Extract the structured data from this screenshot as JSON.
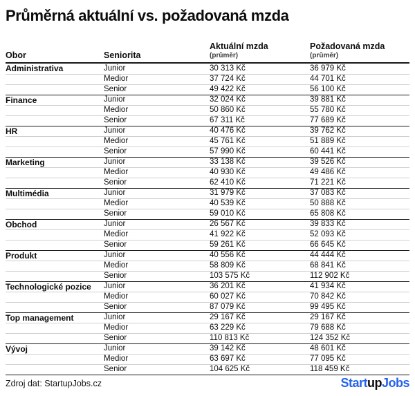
{
  "title": "Průměrná aktuální vs. požadovaná mzda",
  "table": {
    "headers": {
      "obor": "Obor",
      "seniorita": "Seniorita",
      "current": "Aktuální mzda",
      "current_sub": "(průměr)",
      "requested": "Požadovaná mzda",
      "requested_sub": "(průměr)"
    },
    "groups": [
      {
        "obor": "Administrativa",
        "rows": [
          {
            "seniority": "Junior",
            "current": "30 313 Kč",
            "requested": "36 979 Kč"
          },
          {
            "seniority": "Medior",
            "current": "37 724 Kč",
            "requested": "44 701 Kč"
          },
          {
            "seniority": "Senior",
            "current": "49 422 Kč",
            "requested": "56 100 Kč"
          }
        ]
      },
      {
        "obor": "Finance",
        "rows": [
          {
            "seniority": "Junior",
            "current": "32 024 Kč",
            "requested": "39 881 Kč"
          },
          {
            "seniority": "Medior",
            "current": "50 860 Kč",
            "requested": "55 780 Kč"
          },
          {
            "seniority": "Senior",
            "current": "67 311 Kč",
            "requested": "77 689 Kč"
          }
        ]
      },
      {
        "obor": "HR",
        "rows": [
          {
            "seniority": "Junior",
            "current": "40 476 Kč",
            "requested": "39 762 Kč"
          },
          {
            "seniority": "Medior",
            "current": "45 761 Kč",
            "requested": "51 889 Kč"
          },
          {
            "seniority": "Senior",
            "current": "57 990 Kč",
            "requested": "60 441 Kč"
          }
        ]
      },
      {
        "obor": "Marketing",
        "rows": [
          {
            "seniority": "Junior",
            "current": "33 138 Kč",
            "requested": "39 526 Kč"
          },
          {
            "seniority": "Medior",
            "current": "40 930 Kč",
            "requested": "49 486 Kč"
          },
          {
            "seniority": "Senior",
            "current": "62 410 Kč",
            "requested": "71 221 Kč"
          }
        ]
      },
      {
        "obor": "Multimédia",
        "rows": [
          {
            "seniority": "Junior",
            "current": "31 979 Kč",
            "requested": "37 083 Kč"
          },
          {
            "seniority": "Medior",
            "current": "40 539 Kč",
            "requested": "50 888 Kč"
          },
          {
            "seniority": "Senior",
            "current": "59 010 Kč",
            "requested": "65 808 Kč"
          }
        ]
      },
      {
        "obor": "Obchod",
        "rows": [
          {
            "seniority": "Junior",
            "current": "26 567 Kč",
            "requested": "39 833 Kč"
          },
          {
            "seniority": "Medior",
            "current": "41 922 Kč",
            "requested": "52 093 Kč"
          },
          {
            "seniority": "Senior",
            "current": "59 261 Kč",
            "requested": "66 645 Kč"
          }
        ]
      },
      {
        "obor": "Produkt",
        "rows": [
          {
            "seniority": "Junior",
            "current": "40 556 Kč",
            "requested": "44 444 Kč"
          },
          {
            "seniority": "Medior",
            "current": "58 809 Kč",
            "requested": "68 841 Kč"
          },
          {
            "seniority": "Senior",
            "current": "103 575 Kč",
            "requested": "112 902 Kč"
          }
        ]
      },
      {
        "obor": "Technologické pozice",
        "rows": [
          {
            "seniority": "Junior",
            "current": "36 201 Kč",
            "requested": "41 934 Kč"
          },
          {
            "seniority": "Medior",
            "current": "60 027 Kč",
            "requested": "70 842 Kč"
          },
          {
            "seniority": "Senior",
            "current": "87 079 Kč",
            "requested": "99 495 Kč"
          }
        ]
      },
      {
        "obor": "Top management",
        "rows": [
          {
            "seniority": "Junior",
            "current": "29 167 Kč",
            "requested": "29 167 Kč"
          },
          {
            "seniority": "Medior",
            "current": "63 229 Kč",
            "requested": "79 688 Kč"
          },
          {
            "seniority": "Senior",
            "current": "110 813 Kč",
            "requested": "124 352 Kč"
          }
        ]
      },
      {
        "obor": "Vývoj",
        "rows": [
          {
            "seniority": "Junior",
            "current": "39 142 Kč",
            "requested": "48 601 Kč"
          },
          {
            "seniority": "Medior",
            "current": "63 697 Kč",
            "requested": "77 095 Kč"
          },
          {
            "seniority": "Senior",
            "current": "104 625 Kč",
            "requested": "118 459 Kč"
          }
        ]
      }
    ]
  },
  "footer": {
    "source": "Zdroj dat: StartupJobs.cz",
    "logo": {
      "part1": "Start",
      "part2": "up",
      "part3": "Jobs"
    }
  },
  "colors": {
    "brand_blue": "#2563eb",
    "text": "#0d0d0d",
    "divider_light": "#cfcfcf",
    "divider_dark": "#161616"
  },
  "chart_data": {
    "type": "table",
    "title": "Průměrná aktuální vs. požadovaná mzda",
    "columns": [
      "Obor",
      "Seniorita",
      "Aktuální mzda (průměr)",
      "Požadovaná mzda (průměr)"
    ],
    "unit": "Kč",
    "rows": [
      [
        "Administrativa",
        "Junior",
        30313,
        36979
      ],
      [
        "Administrativa",
        "Medior",
        37724,
        44701
      ],
      [
        "Administrativa",
        "Senior",
        49422,
        56100
      ],
      [
        "Finance",
        "Junior",
        32024,
        39881
      ],
      [
        "Finance",
        "Medior",
        50860,
        55780
      ],
      [
        "Finance",
        "Senior",
        67311,
        77689
      ],
      [
        "HR",
        "Junior",
        40476,
        39762
      ],
      [
        "HR",
        "Medior",
        45761,
        51889
      ],
      [
        "HR",
        "Senior",
        57990,
        60441
      ],
      [
        "Marketing",
        "Junior",
        33138,
        39526
      ],
      [
        "Marketing",
        "Medior",
        40930,
        49486
      ],
      [
        "Marketing",
        "Senior",
        62410,
        71221
      ],
      [
        "Multimédia",
        "Junior",
        31979,
        37083
      ],
      [
        "Multimédia",
        "Medior",
        40539,
        50888
      ],
      [
        "Multimédia",
        "Senior",
        59010,
        65808
      ],
      [
        "Obchod",
        "Junior",
        26567,
        39833
      ],
      [
        "Obchod",
        "Medior",
        41922,
        52093
      ],
      [
        "Obchod",
        "Senior",
        59261,
        66645
      ],
      [
        "Produkt",
        "Junior",
        40556,
        44444
      ],
      [
        "Produkt",
        "Medior",
        58809,
        68841
      ],
      [
        "Produkt",
        "Senior",
        103575,
        112902
      ],
      [
        "Technologické pozice",
        "Junior",
        36201,
        41934
      ],
      [
        "Technologické pozice",
        "Medior",
        60027,
        70842
      ],
      [
        "Technologické pozice",
        "Senior",
        87079,
        99495
      ],
      [
        "Top management",
        "Junior",
        29167,
        29167
      ],
      [
        "Top management",
        "Medior",
        63229,
        79688
      ],
      [
        "Top management",
        "Senior",
        110813,
        124352
      ],
      [
        "Vývoj",
        "Junior",
        39142,
        48601
      ],
      [
        "Vývoj",
        "Medior",
        63697,
        77095
      ],
      [
        "Vývoj",
        "Senior",
        104625,
        118459
      ]
    ]
  }
}
